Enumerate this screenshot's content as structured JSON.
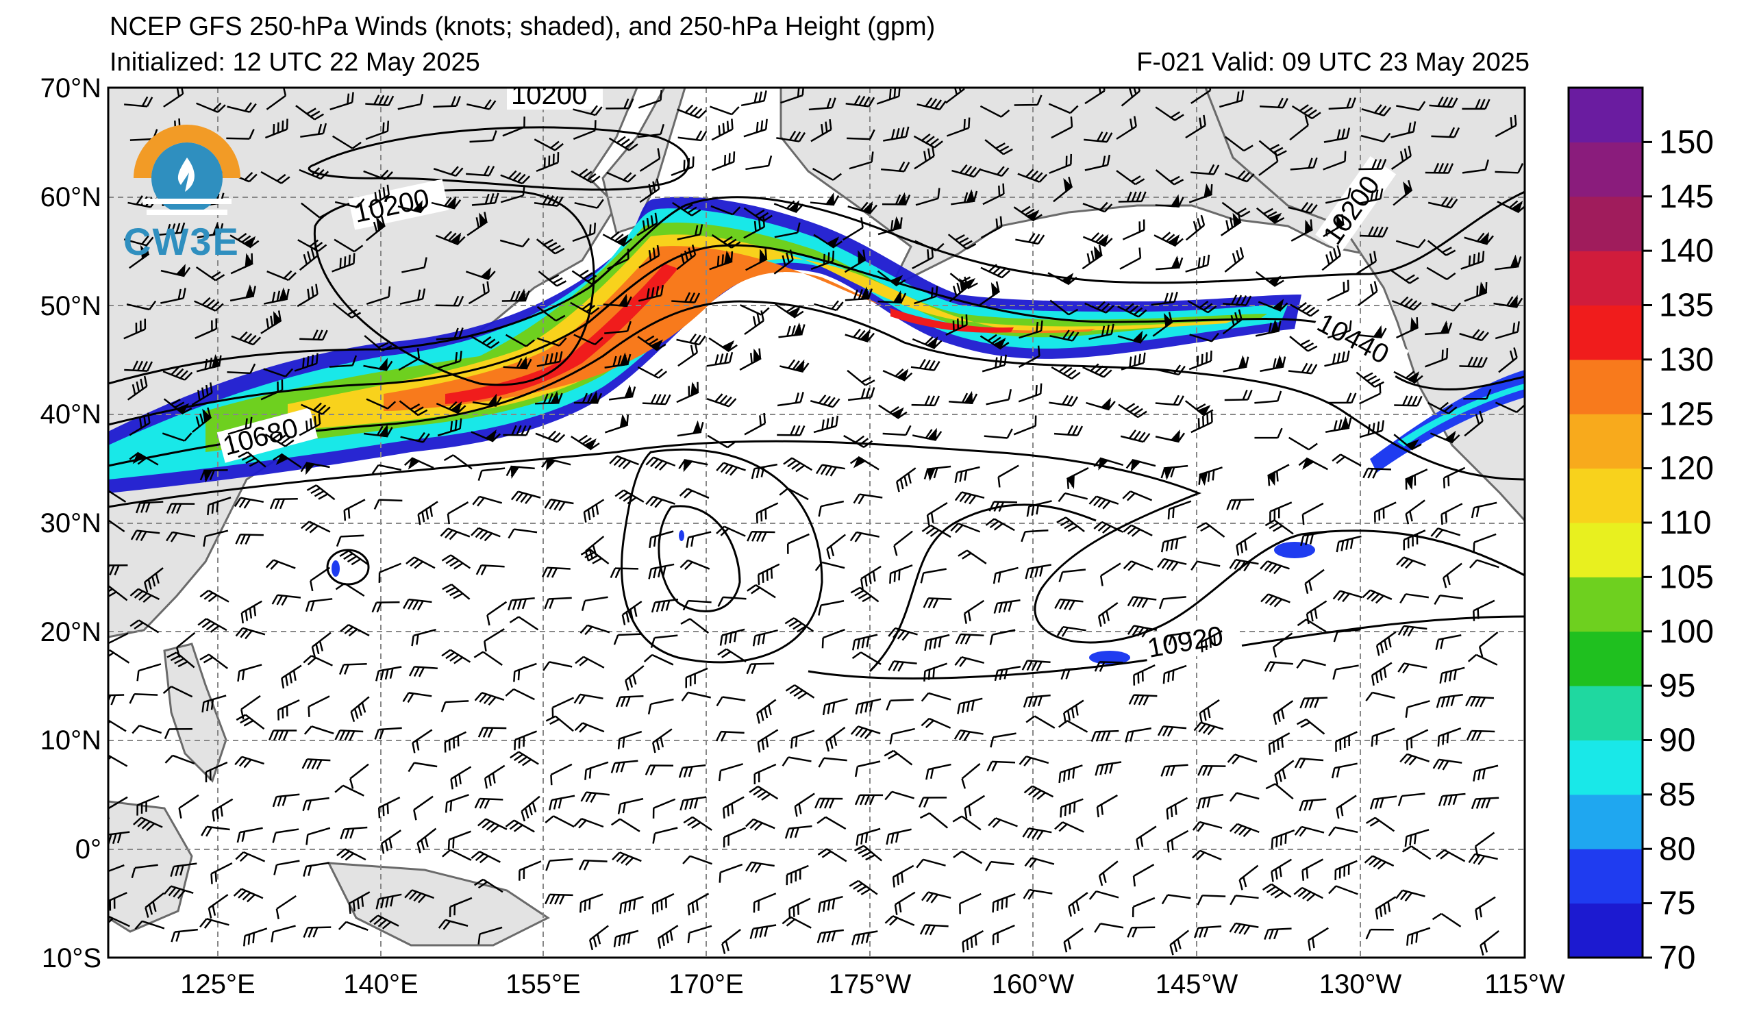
{
  "title": {
    "line1": "NCEP GFS 250-hPa Winds (knots; shaded), and 250-hPa Height (gpm)",
    "initialized": "Initialized: 12 UTC 22 May 2025",
    "valid": "F-021  Valid: 09 UTC 23 May 2025"
  },
  "logo": {
    "text": "CW3E",
    "icon": "cw3e-logo-icon"
  },
  "map": {
    "lat_range": [
      -10,
      70
    ],
    "lon_range": [
      110,
      245
    ],
    "lat_labels": [
      "70°N",
      "60°N",
      "50°N",
      "40°N",
      "30°N",
      "20°N",
      "10°N",
      "0°",
      "10°S"
    ],
    "lon_labels": [
      "125°E",
      "140°E",
      "155°E",
      "170°E",
      "175°W",
      "160°W",
      "145°W",
      "130°W",
      "115°W"
    ],
    "contour_labels": [
      "10200",
      "10200",
      "10200",
      "10440",
      "10680",
      "10920"
    ],
    "land_color": "#e3e3e3",
    "grid": true
  },
  "colorbar": {
    "labels": [
      "70",
      "75",
      "80",
      "85",
      "90",
      "95",
      "100",
      "105",
      "110",
      "120",
      "125",
      "130",
      "135",
      "140",
      "145",
      "150"
    ],
    "colors": [
      "#1c1ad0",
      "#1f3cf0",
      "#1fa7f0",
      "#19e8e8",
      "#1fd8a0",
      "#1fc01f",
      "#6ed01f",
      "#e8f01f",
      "#f8d21c",
      "#f8aa1c",
      "#f87a1c",
      "#f01c1c",
      "#d01c3c",
      "#a01c5c",
      "#8a1c7c",
      "#6a1ca0"
    ]
  }
}
